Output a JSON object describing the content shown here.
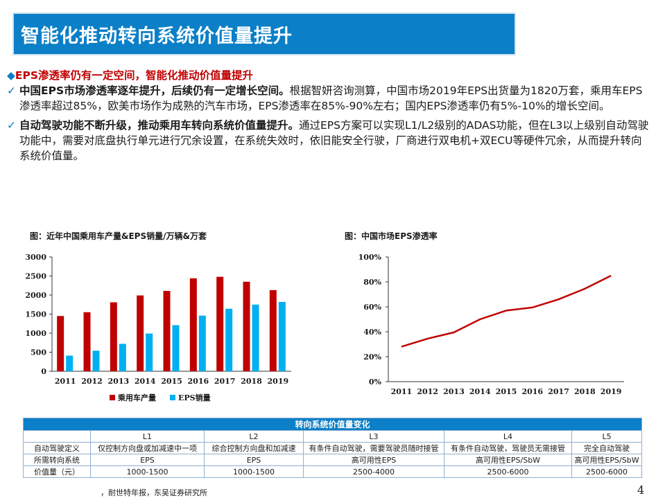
{
  "title": "智能化推动转向系统价值量提升",
  "subtitle": "EPS渗透率仍有一定空间，智能化推动价值量提升",
  "subtitle_icon": "diamond-bullet-icon",
  "paragraphs": [
    {
      "bold": "中国EPS市场渗透率逐年提升，后续仍有一定增长空间。",
      "text": "根据智妍咨询测算，中国市场2019年EPS出货量为1820万套，乘用车EPS渗透率超过85%，欧美市场作为成熟的汽车市场，EPS渗透率在85%-90%左右；国内EPS渗透率仍有5%-10%的增长空间。"
    },
    {
      "bold": "自动驾驶功能不断升级，推动乘用车转向系统价值量提升。",
      "text": "通过EPS方案可以实现L1/L2级别的ADAS功能，但在L3以上级别自动驾驶功能中，需要对底盘执行单元进行冗余设置，在系统失效时，依旧能安全行驶，厂商进行双电机+双ECU等硬件冗余，从而提升转向系统价值量。"
    }
  ],
  "check_icon": "checkmark-icon",
  "colors": {
    "accent": "#0b7fc7",
    "red": "#c00000",
    "bar_red": "#c00000",
    "bar_blue": "#00b0f0",
    "line": "#c00000"
  },
  "chart_data": [
    {
      "type": "bar",
      "title": "图：近年中国乘用车产量&EPS销量/万辆&万套",
      "categories": [
        "2011",
        "2012",
        "2013",
        "2014",
        "2015",
        "2016",
        "2017",
        "2018",
        "2019"
      ],
      "series": [
        {
          "name": "乘用车产量",
          "values": [
            1450,
            1550,
            1810,
            1990,
            2110,
            2440,
            2480,
            2350,
            2130
          ]
        },
        {
          "name": "EPS销量",
          "values": [
            410,
            540,
            720,
            990,
            1210,
            1460,
            1640,
            1750,
            1820
          ]
        }
      ],
      "yticks": [
        "0",
        "500",
        "1000",
        "1500",
        "2000",
        "2500",
        "3000"
      ],
      "ylim": [
        0,
        3000
      ],
      "legend_position": "bottom"
    },
    {
      "type": "line",
      "title": "图：中国市场EPS渗透率",
      "categories": [
        "2011",
        "2012",
        "2013",
        "2014",
        "2015",
        "2016",
        "2017",
        "2018",
        "2019"
      ],
      "values": [
        0.28,
        0.345,
        0.395,
        0.5,
        0.57,
        0.595,
        0.66,
        0.745,
        0.85
      ],
      "yticks": [
        "0%",
        "20%",
        "40%",
        "60%",
        "80%",
        "100%"
      ],
      "ylim": [
        0,
        1
      ]
    }
  ],
  "table": {
    "title": "转向系统价值量变化",
    "levels": [
      "L1",
      "L2",
      "L3",
      "L4",
      "L5"
    ],
    "rows": [
      {
        "label": "自动驾驶定义",
        "cells": [
          "仅控制方向盘或加减速中一项",
          "综合控制方向盘和加减速",
          "有条件自动驾驶，需要驾驶员随时接管",
          "有条件自动驾驶，驾驶员无需接管",
          "完全自动驾驶"
        ]
      },
      {
        "label": "所需转向系统",
        "cells": [
          "EPS",
          "EPS",
          "高可用性EPS",
          "高可用性EPS/SbW",
          "高可用性EPS/SbW"
        ]
      },
      {
        "label": "价值量（元）",
        "cells": [
          "1000-1500",
          "1000-1500",
          "2500-4000",
          "2500-6000",
          "2500-6000"
        ]
      }
    ]
  },
  "source": "，耐世特年报，东吴证券研究所",
  "page_number": "4"
}
